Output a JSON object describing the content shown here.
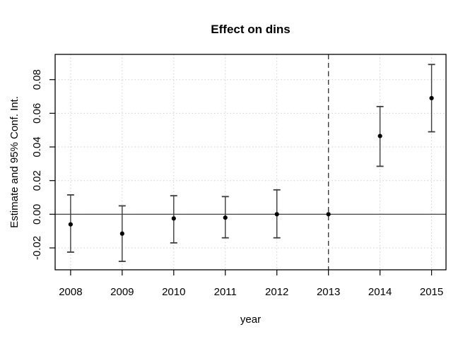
{
  "chart_data": {
    "type": "scatter",
    "title": "Effect on dins",
    "xlabel": "year",
    "ylabel": "Estimate and 95% Conf. Int.",
    "x": [
      2008,
      2009,
      2010,
      2011,
      2012,
      2013,
      2014,
      2015
    ],
    "x_tick_labels": [
      "2008",
      "2009",
      "2010",
      "2011",
      "2012",
      "2013",
      "2014",
      "2015"
    ],
    "y_ticks": [
      -0.02,
      0,
      0.02,
      0.04,
      0.06,
      0.08
    ],
    "y_tick_labels": [
      "-0.02",
      "0.00",
      "0.02",
      "0.04",
      "0.06",
      "0.08"
    ],
    "series": [
      {
        "name": "estimate",
        "values": [
          -0.006,
          -0.0115,
          -0.0025,
          -0.002,
          0.0,
          0.0,
          0.0465,
          0.069
        ]
      },
      {
        "name": "ci_lower",
        "values": [
          -0.0225,
          -0.028,
          -0.017,
          -0.014,
          -0.014,
          null,
          0.0285,
          0.049
        ]
      },
      {
        "name": "ci_upper",
        "values": [
          0.0115,
          0.005,
          0.011,
          0.0105,
          0.0145,
          null,
          0.064,
          0.089
        ]
      }
    ],
    "reference_x": 2013,
    "hline_y": 0,
    "vline_x": 2013,
    "vline_style": "dashed",
    "xlim": [
      2007.7,
      2015.28
    ],
    "ylim": [
      -0.033,
      0.095
    ],
    "grid": true,
    "legend_position": "none",
    "colors": {
      "background": "#ffffff",
      "point": "#000000",
      "error_bar": "#3d3d3d",
      "grid": "#d0d0d0",
      "zero_line": "#404040",
      "dashed_line": "#3a3a3a",
      "axis": "#000000",
      "text": "#000000"
    }
  }
}
